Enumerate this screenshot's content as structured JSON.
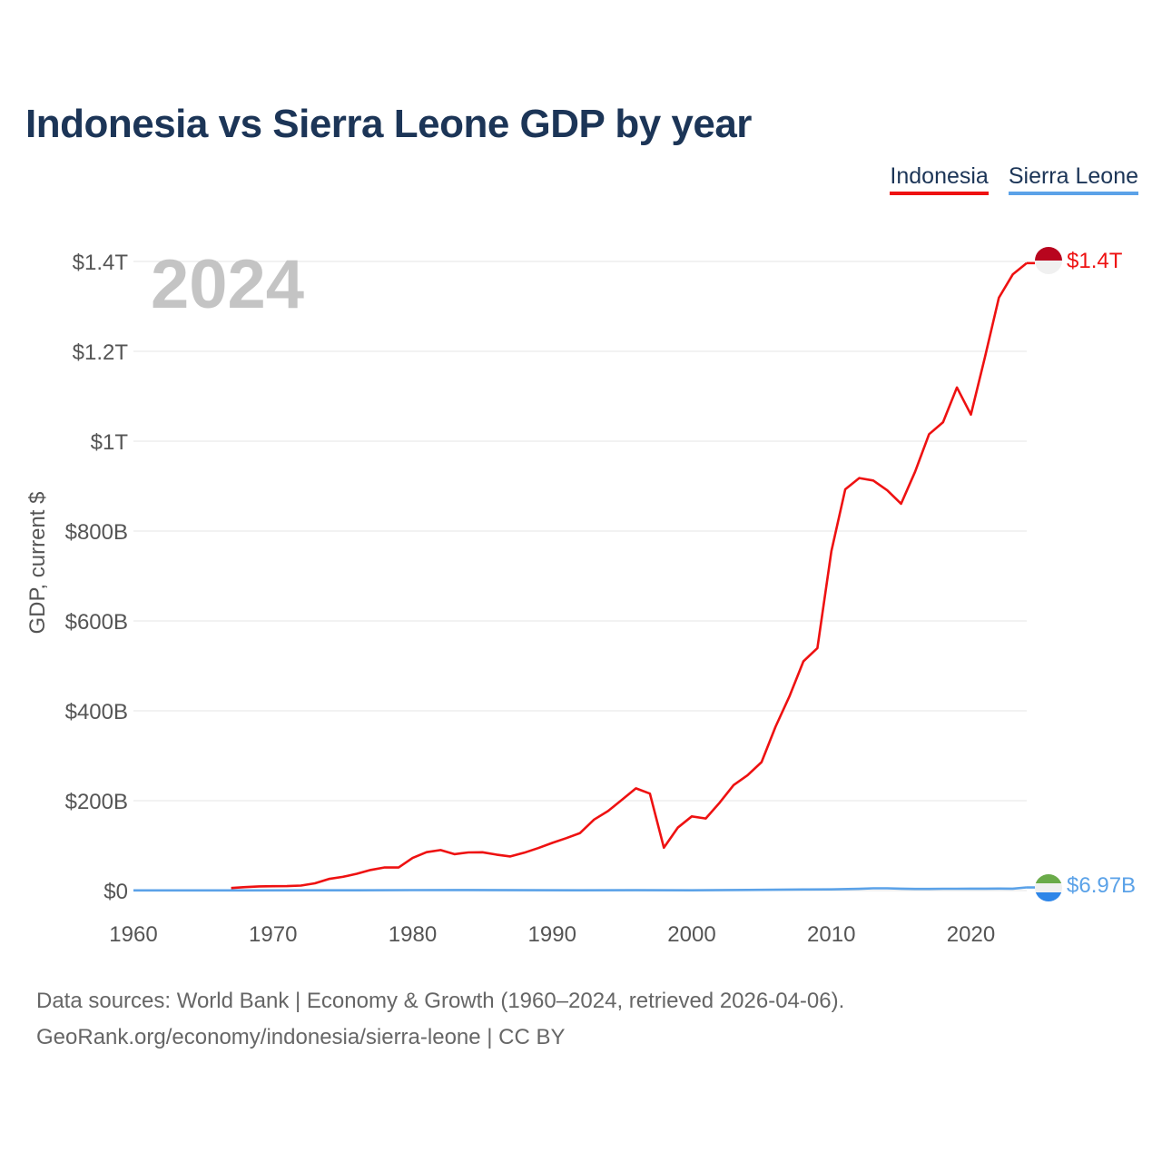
{
  "title": "Indonesia vs Sierra Leone GDP by year",
  "legend": {
    "indonesia": "Indonesia",
    "sierra_leone": "Sierra Leone"
  },
  "year_label": "2024",
  "footer": {
    "line1": "Data sources: World Bank | Economy & Growth (1960–2024, retrieved 2026-04-06).",
    "line2": "GeoRank.org/economy/indonesia/sierra-leone | CC BY"
  },
  "colors": {
    "indonesia": "#ee1111",
    "sierra_leone": "#5ba2e8",
    "title": "#1c3557",
    "grid": "#e6e6e6",
    "axis_text": "#555555",
    "year_watermark": "#c4c4c4"
  },
  "chart_data": {
    "type": "line",
    "title": "Indonesia vs Sierra Leone GDP by year",
    "xlabel": "",
    "ylabel": "GDP, current $",
    "xlim": [
      1960,
      2024
    ],
    "ylim": [
      0,
      1400
    ],
    "y_unit": "billions USD",
    "x_ticks": [
      1960,
      1970,
      1980,
      1990,
      2000,
      2010,
      2020
    ],
    "x_tick_labels": [
      "1960",
      "1970",
      "1980",
      "1990",
      "2000",
      "2010",
      "2020"
    ],
    "y_ticks": [
      0,
      200,
      400,
      600,
      800,
      1000,
      1200,
      1400
    ],
    "y_tick_labels": [
      "$0",
      "$200B",
      "$400B",
      "$600B",
      "$800B",
      "$1T",
      "$1.2T",
      "$1.4T"
    ],
    "grid": true,
    "legend_position": "top-right",
    "series": [
      {
        "name": "Indonesia",
        "end_label": "$1.4T",
        "x": [
          1967,
          1968,
          1969,
          1970,
          1971,
          1972,
          1973,
          1974,
          1975,
          1976,
          1977,
          1978,
          1979,
          1980,
          1981,
          1982,
          1983,
          1984,
          1985,
          1986,
          1987,
          1988,
          1989,
          1990,
          1991,
          1992,
          1993,
          1994,
          1995,
          1996,
          1997,
          1998,
          1999,
          2000,
          2001,
          2002,
          2003,
          2004,
          2005,
          2006,
          2007,
          2008,
          2009,
          2010,
          2011,
          2012,
          2013,
          2014,
          2015,
          2016,
          2017,
          2018,
          2019,
          2020,
          2021,
          2022,
          2023,
          2024
        ],
        "values": [
          5.7,
          7.7,
          9.2,
          9.7,
          9.9,
          11.2,
          16.2,
          25.8,
          30.5,
          37.3,
          45.8,
          51.5,
          51.3,
          72.5,
          85.5,
          90.2,
          81.1,
          84.9,
          85.3,
          79.9,
          75.9,
          84.3,
          94.5,
          106.1,
          116.6,
          128.0,
          158.0,
          176.9,
          202.1,
          227.4,
          215.7,
          95.4,
          140.0,
          165.0,
          160.4,
          195.7,
          234.8,
          256.8,
          285.9,
          364.6,
          432.2,
          510.2,
          539.6,
          755.1,
          892.9,
          917.9,
          912.5,
          890.8,
          860.9,
          931.9,
          1015.6,
          1042.3,
          1119.5,
          1059.1,
          1186.5,
          1319.1,
          1371.2,
          1396.3
        ]
      },
      {
        "name": "Sierra Leone",
        "end_label": "$6.97B",
        "x": [
          1960,
          1964,
          1968,
          1972,
          1976,
          1980,
          1984,
          1988,
          1992,
          1996,
          2000,
          2004,
          2008,
          2010,
          2012,
          2013,
          2014,
          2015,
          2016,
          2017,
          2018,
          2019,
          2020,
          2021,
          2022,
          2023,
          2024
        ],
        "values": [
          0.32,
          0.45,
          0.42,
          0.55,
          0.6,
          1.1,
          1.2,
          0.9,
          0.7,
          0.9,
          0.6,
          1.4,
          2.5,
          2.6,
          3.8,
          5.0,
          5.0,
          4.2,
          3.7,
          3.7,
          4.1,
          4.1,
          4.2,
          4.3,
          4.5,
          4.2,
          6.97
        ]
      }
    ]
  }
}
